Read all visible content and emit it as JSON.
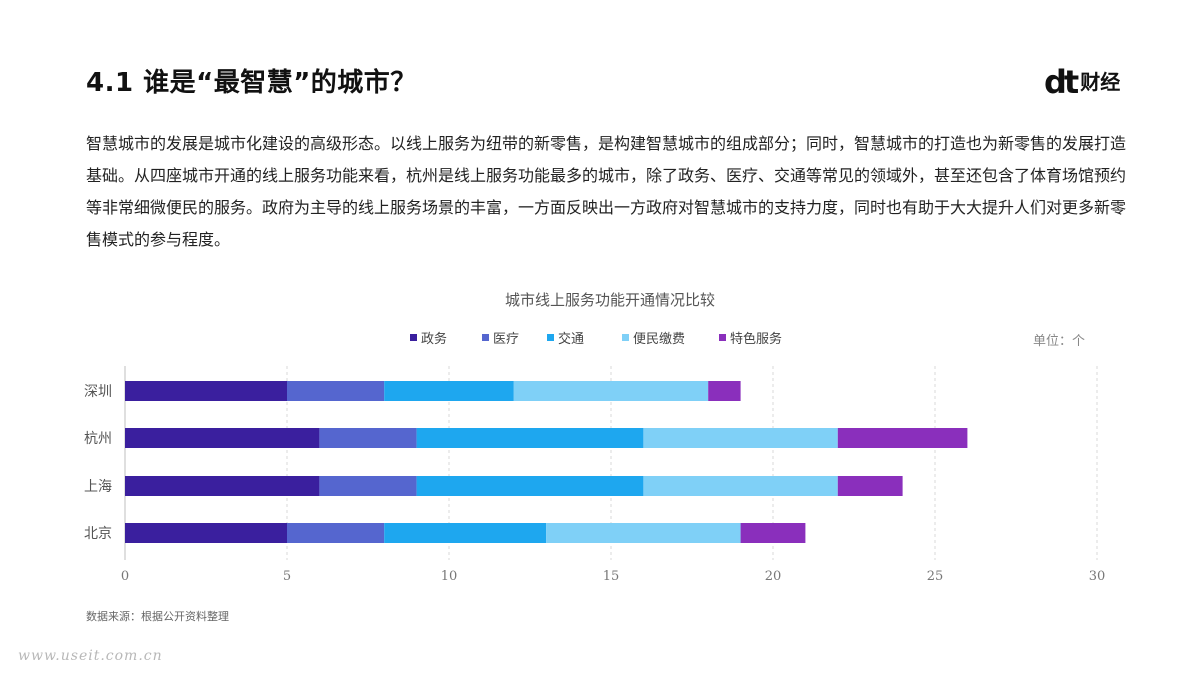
{
  "header": {
    "title": "4.1 谁是“最智慧”的城市？",
    "logo_mark": "dt",
    "logo_text": "财经"
  },
  "intro_text": "智慧城市的发展是城市化建设的高级形态。以线上服务为纽带的新零售，是构建智慧城市的组成部分；同时，智慧城市的打造也为新零售的发展打造基础。从四座城市开通的线上服务功能来看，杭州是线上服务功能最多的城市，除了政务、医疗、交通等常见的领域外，甚至还包含了体育场馆预约等非常细微便民的服务。政府为主导的线上服务场景的丰富，一方面反映出一方政府对智慧城市的支持力度，同时也有助于大大提升人们对更多新零售模式的参与程度。",
  "chart_data": {
    "type": "bar",
    "orientation": "horizontal",
    "stacked": true,
    "title": "城市线上服务功能开通情况比较",
    "unit_label": "单位：个",
    "categories": [
      "深圳",
      "杭州",
      "上海",
      "北京"
    ],
    "series": [
      {
        "name": "政务",
        "color": "#3a1f9e",
        "values": [
          5,
          6,
          6,
          5
        ]
      },
      {
        "name": "医疗",
        "color": "#5566cf",
        "values": [
          3,
          3,
          3,
          3
        ]
      },
      {
        "name": "交通",
        "color": "#1ea7ef",
        "values": [
          4,
          7,
          7,
          5
        ]
      },
      {
        "name": "便民缴费",
        "color": "#7fd0f7",
        "values": [
          6,
          6,
          6,
          6
        ]
      },
      {
        "name": "特色服务",
        "color": "#8a2fbc",
        "values": [
          1,
          4,
          2,
          2
        ]
      }
    ],
    "xlim": [
      0,
      30
    ],
    "x_ticks": [
      0,
      5,
      10,
      15,
      20,
      25,
      30
    ],
    "grid": true,
    "legend_position": "top"
  },
  "source_text": "数据来源：根据公开资料整理",
  "watermark": "www.useit.com.cn"
}
